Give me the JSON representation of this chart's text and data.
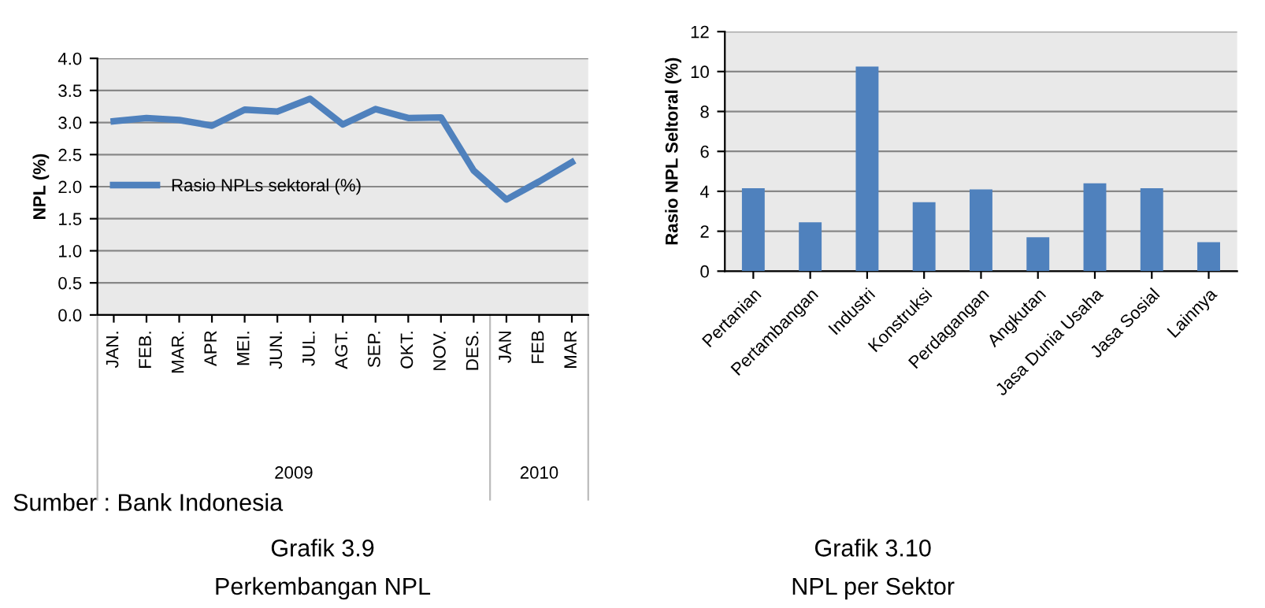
{
  "chart_data": [
    {
      "type": "line",
      "title": "Grafik 3.9",
      "subtitle": "Perkembangan NPL",
      "ylabel": "NPL (%)",
      "categories": [
        "JAN.",
        "FEB.",
        "MAR.",
        "APR",
        "MEI.",
        "JUN.",
        "JUL.",
        "AGT.",
        "SEP.",
        "OKT.",
        "NOV.",
        "DES.",
        "JAN",
        "FEB",
        "MAR"
      ],
      "series": [
        {
          "name": "Rasio NPLs sektoral (%)",
          "color": "#4f81bd",
          "values": [
            3.02,
            3.07,
            3.04,
            2.95,
            3.2,
            3.17,
            3.37,
            2.97,
            3.21,
            3.07,
            3.08,
            2.25,
            1.8,
            2.08,
            2.38
          ]
        }
      ],
      "ylim": [
        0,
        4
      ],
      "yticks": [
        {
          "value": 0,
          "label": "0.0"
        },
        {
          "value": 0.5,
          "label": "0.5"
        },
        {
          "value": 1,
          "label": "1.0"
        },
        {
          "value": 1.5,
          "label": "1.5"
        },
        {
          "value": 2,
          "label": "2.0"
        },
        {
          "value": 2.5,
          "label": "2.5"
        },
        {
          "value": 3,
          "label": "3.0"
        },
        {
          "value": 3.5,
          "label": "3.5"
        },
        {
          "value": 4,
          "label": "4.0"
        }
      ],
      "grid": "y",
      "legend": "left",
      "line_style": "solid",
      "marker": "none",
      "annotations": [
        "2009",
        "2010",
        "Sumber : Bank Indonesia"
      ]
    },
    {
      "type": "bar",
      "title": "Grafik 3.10",
      "subtitle": "NPL per Sektor",
      "ylabel": "Rasio NPL Seltoral (%)",
      "categories": [
        "Pertanian",
        "Pertambangan",
        "Industri",
        "Konstruksi",
        "Perdagangan",
        "Angkutan",
        "Jasa Dunia Usaha",
        "Jasa Sosial",
        "Lainnya"
      ],
      "values": [
        4.15,
        2.45,
        10.25,
        3.45,
        4.1,
        1.7,
        4.4,
        4.15,
        1.45
      ],
      "color": "#4f81bd",
      "ylim": [
        0,
        12
      ],
      "yticks": [
        0,
        2,
        4,
        6,
        8,
        10,
        12
      ],
      "grid": "y"
    }
  ]
}
